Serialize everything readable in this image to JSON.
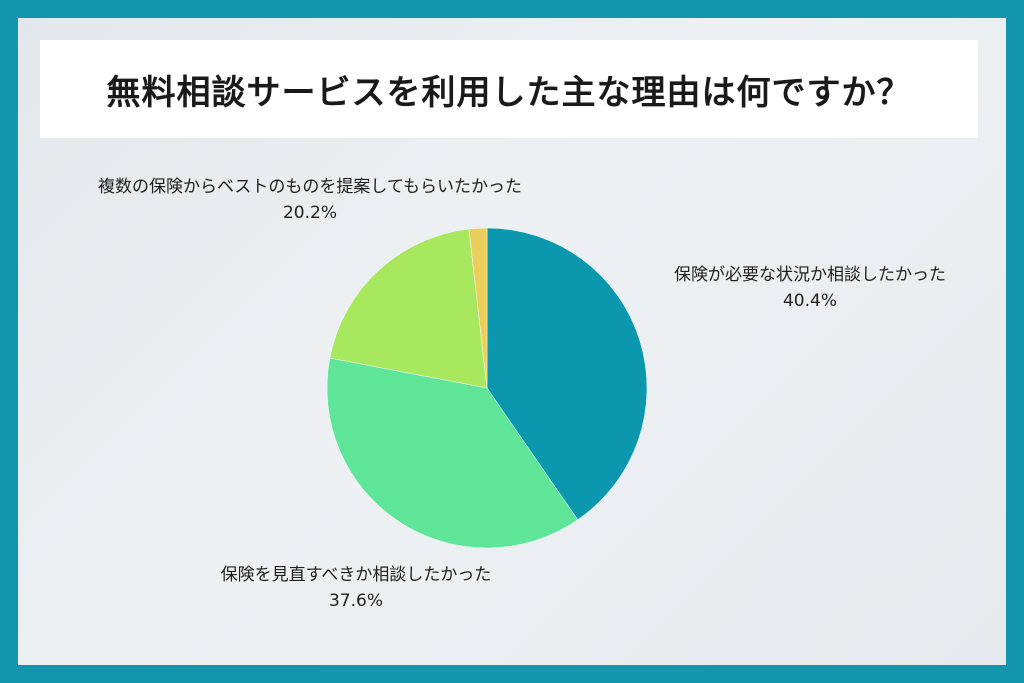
{
  "title": "無料相談サービスを利用した主な理由は何ですか？",
  "colors": {
    "border": "#1396ad",
    "background": "#e8ecef",
    "title_bg": "#ffffff"
  },
  "chart_data": {
    "type": "pie",
    "title": "無料相談サービスを利用した主な理由は何ですか？",
    "start_angle_deg": 0,
    "direction": "clockwise",
    "slices": [
      {
        "label": "保険が必要な状況か相談したかった",
        "value": 40.4,
        "value_label": "40.4%",
        "color": "#0b97ad"
      },
      {
        "label": "保険を見直すべきか相談したかった",
        "value": 37.6,
        "value_label": "37.6%",
        "color": "#5ee597"
      },
      {
        "label": "複数の保険からベストのものを提案してもらいたかった",
        "value": 20.2,
        "value_label": "20.2%",
        "color": "#a8e85e"
      },
      {
        "label": "",
        "value": 1.8,
        "value_label": "",
        "color": "#ecce5c"
      }
    ]
  }
}
